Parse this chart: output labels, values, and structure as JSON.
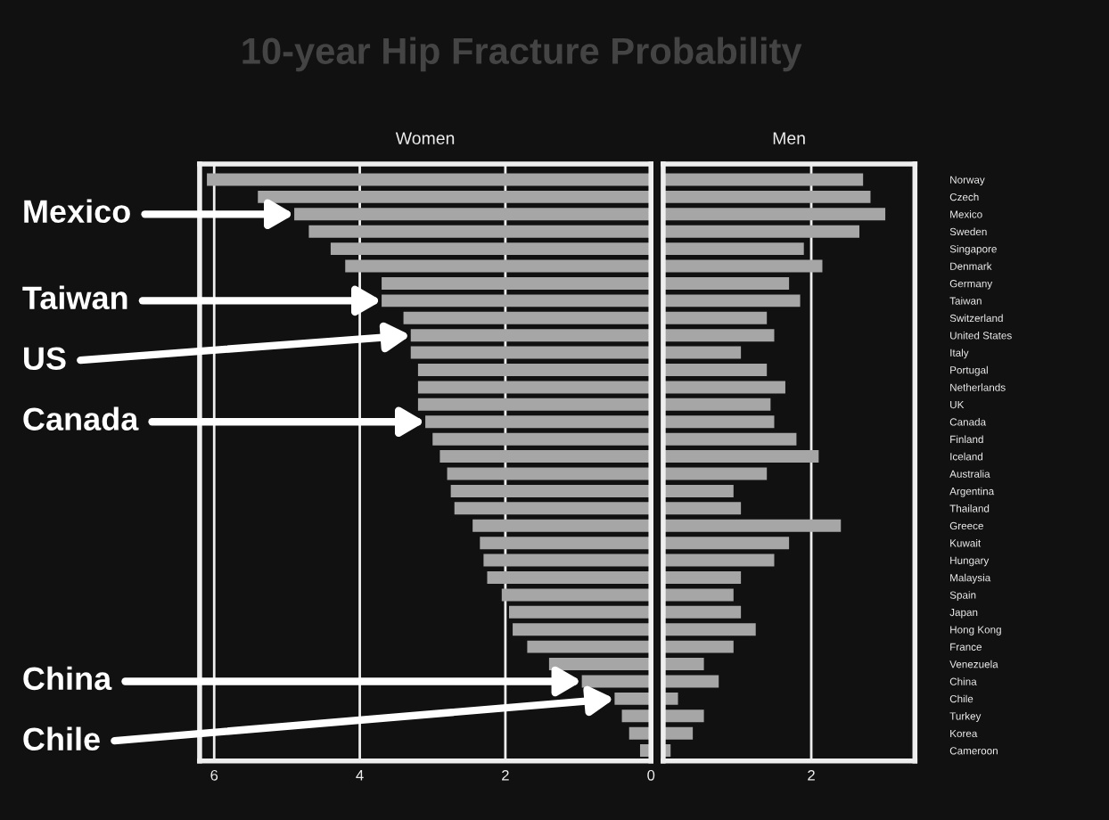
{
  "chart_data": [
    {
      "type": "bar",
      "orientation": "horizontal",
      "title": "10-year Hip Fracture Probability",
      "subtitle": "Women",
      "categories": [
        "Norway",
        "Czech",
        "Mexico",
        "Sweden",
        "Singapore",
        "Denmark",
        "Germany",
        "Taiwan",
        "Switzerland",
        "United States",
        "Italy",
        "Portugal",
        "Netherlands",
        "UK",
        "Canada",
        "Finland",
        "Iceland",
        "Australia",
        "Argentina",
        "Thailand",
        "Greece",
        "Kuwait",
        "Hungary",
        "Malaysia",
        "Spain",
        "Japan",
        "Hong Kong",
        "France",
        "Venezuela",
        "China",
        "Chile",
        "Turkey",
        "Korea",
        "Cameroon"
      ],
      "values": [
        6.1,
        5.4,
        4.9,
        4.7,
        4.4,
        4.2,
        3.7,
        3.7,
        3.4,
        3.3,
        3.3,
        3.2,
        3.2,
        3.2,
        3.1,
        3.0,
        2.9,
        2.8,
        2.75,
        2.7,
        2.45,
        2.35,
        2.3,
        2.25,
        2.05,
        1.95,
        1.9,
        1.7,
        1.4,
        0.95,
        0.5,
        0.4,
        0.3,
        0.15
      ],
      "color": "#a6a6a6",
      "xlim": [
        6.2,
        0
      ],
      "xticks": [
        6,
        4,
        2,
        0
      ],
      "grid": "x",
      "tick_labels": "x",
      "annotations": [
        {
          "text": "Mexico",
          "x": 4.9,
          "y": "Mexico"
        },
        {
          "text": "Taiwan",
          "x": 3.7,
          "y": "Taiwan"
        },
        {
          "text": "US",
          "x": 3.3,
          "y": "United States"
        },
        {
          "text": "Canada",
          "x": 3.1,
          "y": "Canada"
        },
        {
          "text": "China",
          "x": 0.95,
          "y": "China"
        },
        {
          "text": "Chile",
          "x": 0.5,
          "y": "Chile"
        }
      ]
    },
    {
      "type": "bar",
      "orientation": "horizontal",
      "title": "Men",
      "categories": [
        "Norway",
        "Czech",
        "Mexico",
        "Sweden",
        "Singapore",
        "Denmark",
        "Germany",
        "Taiwan",
        "Switzerland",
        "United States",
        "Italy",
        "Portugal",
        "Netherlands",
        "UK",
        "Canada",
        "Finland",
        "Iceland",
        "Australia",
        "Argentina",
        "Thailand",
        "Greece",
        "Kuwait",
        "Hungary",
        "Malaysia",
        "Spain",
        "Japan",
        "Hong Kong",
        "France",
        "Venezuela",
        "China",
        "Chile",
        "Turkey",
        "Korea",
        "Cameroon"
      ],
      "values": [
        2.7,
        2.8,
        3.0,
        2.65,
        1.9,
        2.15,
        1.7,
        1.85,
        1.4,
        1.5,
        1.05,
        1.4,
        1.65,
        1.45,
        1.5,
        1.8,
        2.1,
        1.4,
        0.95,
        1.05,
        2.4,
        1.7,
        1.5,
        1.05,
        0.95,
        1.05,
        1.25,
        0.95,
        0.55,
        0.75,
        0.2,
        0.55,
        0.4,
        0.1
      ],
      "color": "#a6a6a6",
      "xlim": [
        0,
        3.4
      ],
      "xticks": [
        {
          "value": 0,
          "label": null
        },
        2
      ],
      "grid": "x"
    }
  ]
}
